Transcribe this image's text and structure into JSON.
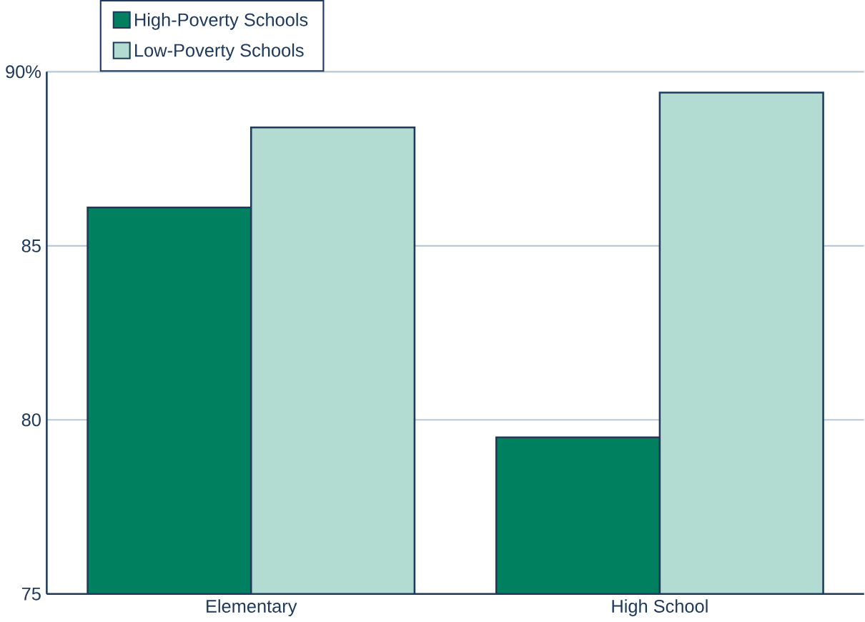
{
  "chart_data": {
    "type": "bar",
    "categories": [
      "Elementary",
      "High School"
    ],
    "series": [
      {
        "name": "High-Poverty Schools",
        "color": "#00805f",
        "values": [
          86.1,
          79.5
        ]
      },
      {
        "name": "Low-Poverty Schools",
        "color": "#b2dbd1",
        "values": [
          88.4,
          89.4
        ]
      }
    ],
    "ylim": [
      75,
      90
    ],
    "yticks": [
      75,
      80,
      85,
      {
        "value": 90,
        "label": "90%"
      }
    ],
    "grid": "y",
    "legend": "top left"
  }
}
